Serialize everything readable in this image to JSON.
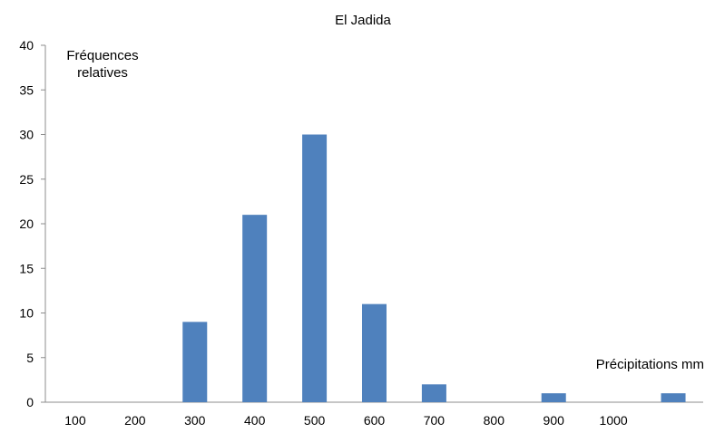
{
  "chart_data": {
    "type": "bar",
    "title": "El Jadida",
    "ylabel_lines": [
      "Fréquences",
      "relatives"
    ],
    "xlabel": "Précipitations mm",
    "categories": [
      "100",
      "200",
      "300",
      "400",
      "500",
      "600",
      "700",
      "800",
      "900",
      "1000",
      ""
    ],
    "values": [
      0,
      0,
      9,
      21,
      30,
      11,
      2,
      0,
      1,
      0,
      1
    ],
    "ylim": [
      0,
      40
    ],
    "yticks": [
      0,
      5,
      10,
      15,
      20,
      25,
      30,
      35,
      40
    ],
    "grid": false,
    "bar_color": "#4f81bd"
  }
}
